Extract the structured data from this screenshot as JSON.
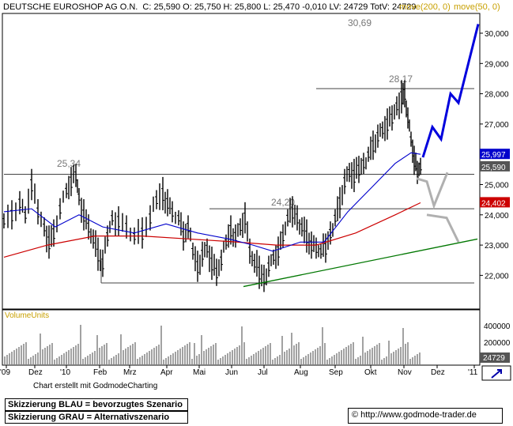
{
  "header": {
    "symbol": "DEUTSCHE EUROSHOP AG O.N.",
    "quote": "C: 25,590 O: 25,750 H: 25,800 L: 25,470 -0,010 LV: 24729 TotV: 24729",
    "ma200_label": "move(200, 0)",
    "ma50_label": "move(50, 0)"
  },
  "chart_data": {
    "type": "line",
    "ylim": [
      21.6,
      30.6
    ],
    "y_ticks": [
      "30,000",
      "29,000",
      "28,000",
      "27,000",
      "26,000",
      "25,000",
      "24,000",
      "23,000",
      "22,000"
    ],
    "x_ticks": [
      "'09",
      "Dez",
      "'10",
      "Feb",
      "Mrz",
      "Apr",
      "Mai",
      "Jun",
      "Jul",
      "Aug",
      "Sep",
      "Okt",
      "Nov",
      "Dez",
      "'11"
    ],
    "value_tags": {
      "ma50": "25,997",
      "close": "25,590",
      "ma200": "24,402"
    },
    "levels": [
      {
        "label": "30,69",
        "value": 30.69
      },
      {
        "label": "28,17",
        "value": 28.17
      },
      {
        "label": "25,34",
        "value": 25.34
      },
      {
        "label": "24,20",
        "value": 24.2
      },
      {
        "label": "",
        "value": 21.75
      }
    ],
    "volume": {
      "label": "VolumeUnits",
      "ticks": [
        "400000",
        "200000"
      ],
      "last": "24729"
    },
    "colors": {
      "blue_scenario": "#0000dd",
      "gray_scenario": "#b0b0b0",
      "ma50": "#0000cc",
      "ma200": "#cc0000",
      "trend": "#007700",
      "close_tag": "#555555"
    }
  },
  "footer": {
    "credit": "Chart erstellt mit GodmodeCharting",
    "note_blue": "Skizzierung BLAU = bevorzugtes Szenario",
    "note_gray": "Skizzierung GRAU = Alternativszenario",
    "url": "© http://www.godmode-trader.de"
  }
}
